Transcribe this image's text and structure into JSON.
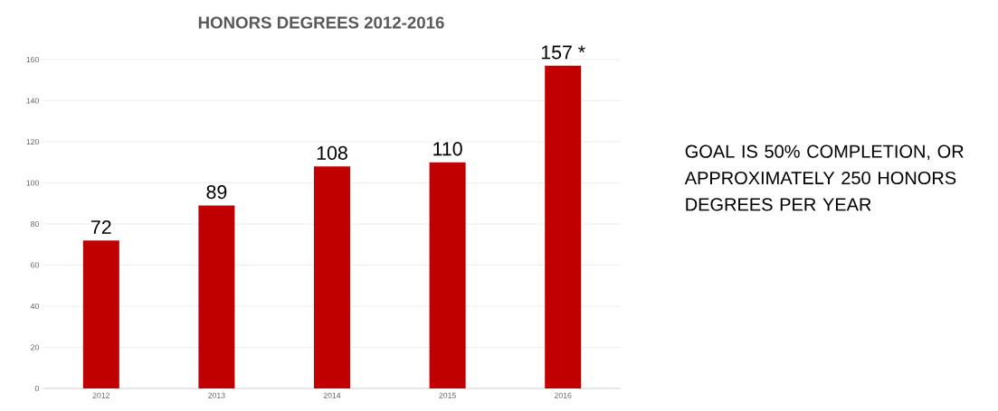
{
  "chart_data": {
    "type": "bar",
    "title": "HONORS DEGREES 2012-2016",
    "categories": [
      "2012",
      "2013",
      "2014",
      "2015",
      "2016"
    ],
    "values": [
      72,
      89,
      108,
      110,
      157
    ],
    "value_labels": [
      "72",
      "89",
      "108",
      "110",
      "157 *"
    ],
    "color": "#c00000",
    "ylim": [
      0,
      160
    ],
    "yticks": [
      0,
      20,
      40,
      60,
      80,
      100,
      120,
      140,
      160
    ],
    "grid": "y",
    "annotations": [
      "GOAL IS 50% COMPLETION, OR APPROXIMATELY 250 HONORS DEGREES PER YEAR"
    ]
  }
}
